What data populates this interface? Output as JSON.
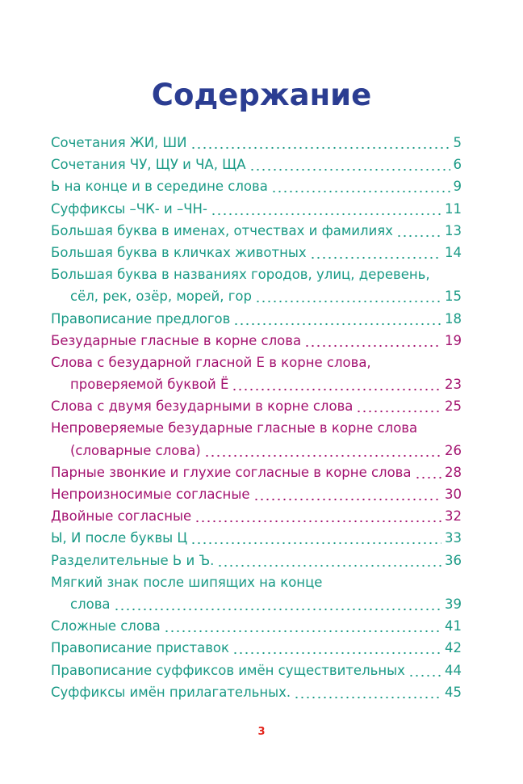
{
  "title": "Содержание",
  "entries": [
    {
      "lines": [
        "Сочетания ЖИ, ШИ"
      ],
      "page": 5,
      "color": "#1a9a86"
    },
    {
      "lines": [
        "Сочетания ЧУ, ЩУ и ЧА, ЩА"
      ],
      "page": 6,
      "color": "#1a9a86"
    },
    {
      "lines": [
        "Ь на конце и в середине слова"
      ],
      "page": 9,
      "color": "#1a9a86"
    },
    {
      "lines": [
        "Суффиксы –ЧК- и –ЧН-"
      ],
      "page": 11,
      "color": "#1a9a86"
    },
    {
      "lines": [
        "Большая буква в именах, отчествах и фамилиях"
      ],
      "page": 13,
      "color": "#1a9a86"
    },
    {
      "lines": [
        "Большая буква в кличках животных"
      ],
      "page": 14,
      "color": "#1a9a86"
    },
    {
      "lines": [
        "Большая буква в названиях городов, улиц, деревень,",
        "сёл, рек, озёр, морей, гор"
      ],
      "page": 15,
      "color": "#1a9a86"
    },
    {
      "lines": [
        "Правописание предлогов"
      ],
      "page": 18,
      "color": "#1a9a86"
    },
    {
      "lines": [
        "Безударные гласные в корне слова"
      ],
      "page": 19,
      "color": "#a3126f"
    },
    {
      "lines": [
        "Слова с безударной гласной Е в корне слова,",
        "проверяемой буквой Ё"
      ],
      "page": 23,
      "color": "#a3126f"
    },
    {
      "lines": [
        "Слова с двумя безударными в корне слова"
      ],
      "page": 25,
      "color": "#a3126f"
    },
    {
      "lines": [
        "Непроверяемые безударные гласные в корне слова",
        "(словарные слова)"
      ],
      "page": 26,
      "color": "#a3126f"
    },
    {
      "lines": [
        "Парные звонкие и глухие согласные в корне слова"
      ],
      "page": 28,
      "color": "#a3126f"
    },
    {
      "lines": [
        "Непроизносимые согласные"
      ],
      "page": 30,
      "color": "#a3126f"
    },
    {
      "lines": [
        "Двойные согласные"
      ],
      "page": 32,
      "color": "#a3126f"
    },
    {
      "lines": [
        "Ы, И после буквы Ц"
      ],
      "page": 33,
      "color": "#1a9a86"
    },
    {
      "lines": [
        "Разделительные Ь и Ъ."
      ],
      "page": 36,
      "color": "#1a9a86"
    },
    {
      "lines": [
        "Мягкий знак после шипящих на конце",
        "слова"
      ],
      "page": 39,
      "color": "#1a9a86"
    },
    {
      "lines": [
        "Сложные слова"
      ],
      "page": 41,
      "color": "#1a9a86"
    },
    {
      "lines": [
        "Правописание приставок"
      ],
      "page": 42,
      "color": "#1a9a86"
    },
    {
      "lines": [
        "Правописание суффиксов имён существительных"
      ],
      "page": 44,
      "color": "#1a9a86"
    },
    {
      "lines": [
        "Суффиксы имён прилагательных."
      ],
      "page": 45,
      "color": "#1a9a86"
    }
  ],
  "page_number": 3
}
